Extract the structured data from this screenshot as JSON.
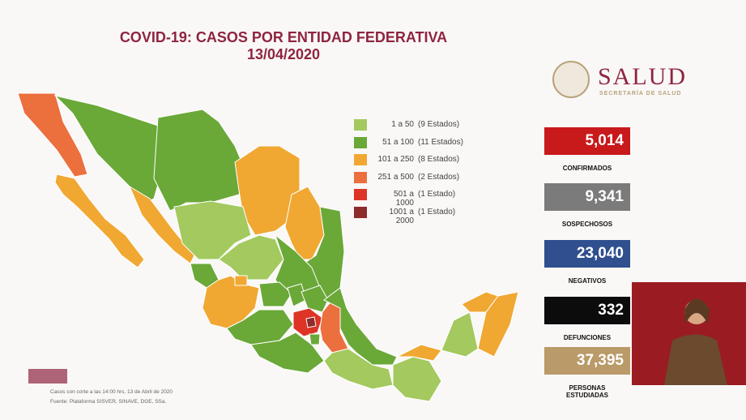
{
  "header": {
    "title": "COVID-19: CASOS POR ENTIDAD FEDERATIVA",
    "date": "13/04/2020"
  },
  "logo": {
    "name": "SALUD",
    "subtitle": "SECRETARÍA DE SALUD"
  },
  "legend": [
    {
      "range": "1 a 50",
      "count": "(9 Estados)",
      "color": "#a3c95f"
    },
    {
      "range": "51 a 100",
      "count": "(11 Estados)",
      "color": "#6aa838"
    },
    {
      "range": "101 a 250",
      "count": "(8 Estados)",
      "color": "#f0a833"
    },
    {
      "range": "251 a 500",
      "count": "(2 Estados)",
      "color": "#ec6f3e"
    },
    {
      "range": "501 a 1000",
      "count": "(1 Estado)",
      "color": "#dd3426"
    },
    {
      "range": "1001 a 2000",
      "count": "(1 Estado)",
      "color": "#8e2b2b"
    }
  ],
  "stats": [
    {
      "value": "5,014",
      "label": "CONFIRMADOS",
      "color": "#c8191b"
    },
    {
      "value": "9,341",
      "label": "SOSPECHOSOS",
      "color": "#7b7b7b"
    },
    {
      "value": "23,040",
      "label": "NEGATIVOS",
      "color": "#2f4f8f"
    },
    {
      "value": "332",
      "label": "DEFUNCIONES",
      "color": "#0c0c0c"
    },
    {
      "value": "37,395",
      "label": "PERSONAS ESTUDIADAS",
      "color": "#b99a68"
    }
  ],
  "footer": [
    "Casos con corte a las 14:00 hrs, 13 de Abril de 2020",
    "Fuente: Plataforma SISVER, SINAVE, DGE, SSa."
  ]
}
